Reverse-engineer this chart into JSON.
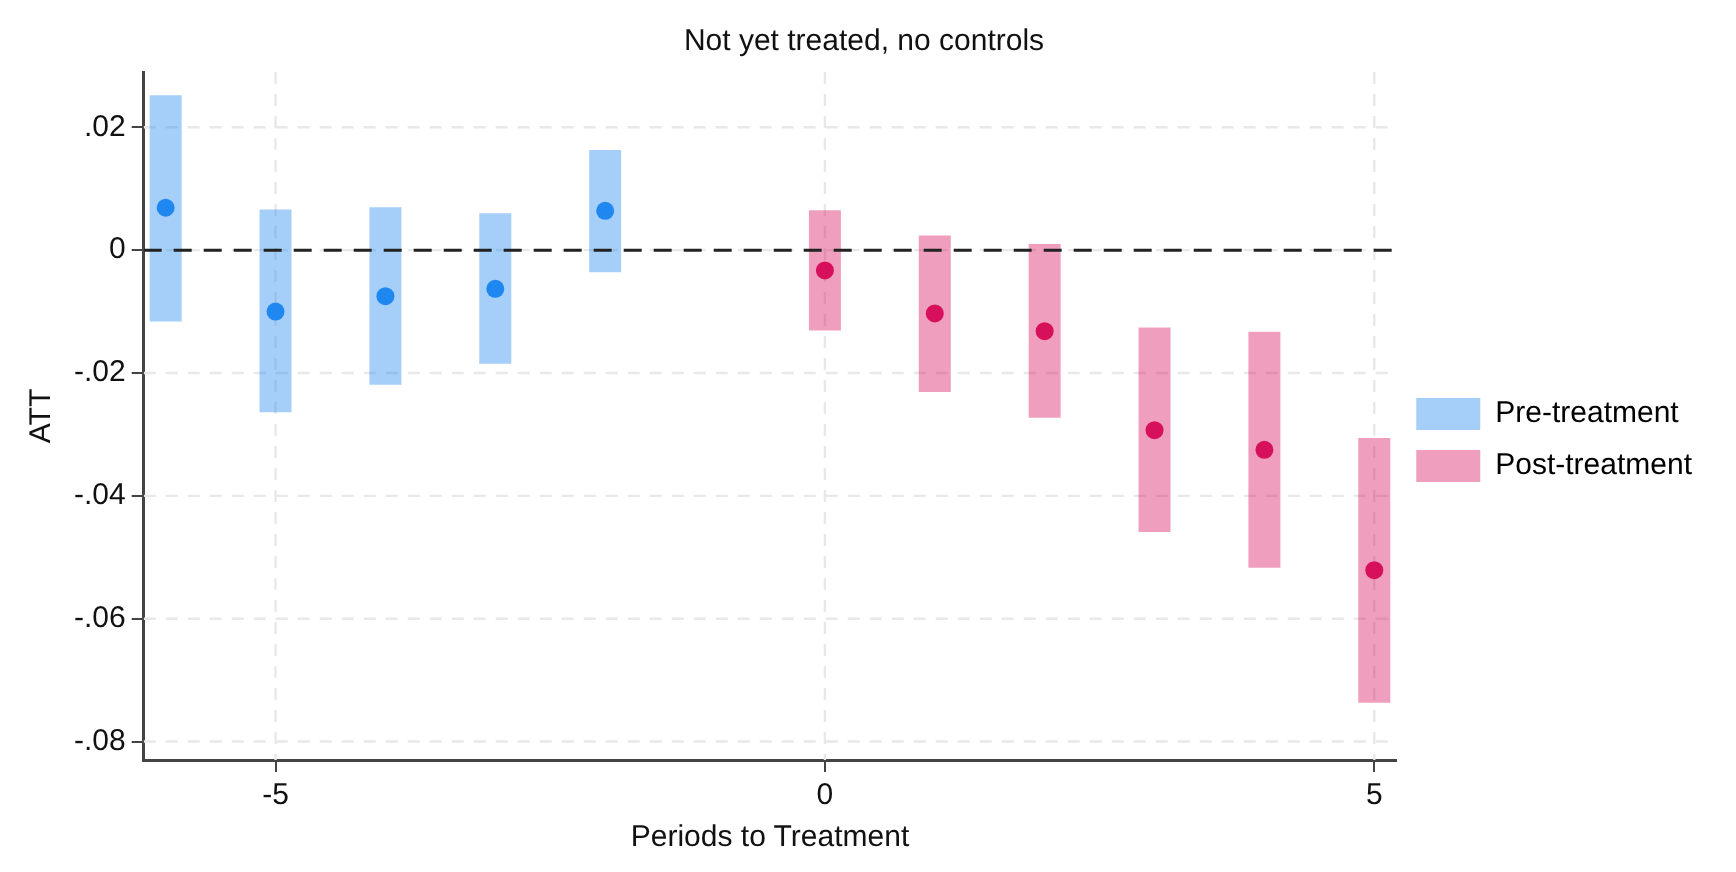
{
  "chart_data": {
    "type": "scatter",
    "title": "Not yet treated, no controls",
    "xlabel": "Periods to Treatment",
    "ylabel": "ATT",
    "series": [
      {
        "name": "Pre-treatment",
        "color": "#1e88f0",
        "x": [
          -6,
          -5,
          -4,
          -3,
          -2
        ],
        "values": [
          0.0069,
          -0.01,
          -0.0075,
          -0.0063,
          0.0064
        ],
        "errors": [
          [
            -0.0116,
            0.0252
          ],
          [
            -0.0264,
            0.0066
          ],
          [
            -0.0219,
            0.007
          ],
          [
            -0.0185,
            0.006
          ],
          [
            -0.0036,
            0.0163
          ]
        ]
      },
      {
        "name": "Post-treatment",
        "color": "#d6105a",
        "x": [
          0,
          1,
          2,
          3,
          4,
          5
        ],
        "values": [
          -0.0033,
          -0.0103,
          -0.0132,
          -0.0293,
          -0.0325,
          -0.0521
        ],
        "errors": [
          [
            -0.0131,
            0.0065
          ],
          [
            -0.0231,
            0.0024
          ],
          [
            -0.0273,
            0.001
          ],
          [
            -0.0459,
            -0.0126
          ],
          [
            -0.0517,
            -0.0133
          ],
          [
            -0.0737,
            -0.0306
          ]
        ]
      }
    ],
    "xlim": [
      -6.2,
      5.2
    ],
    "xticks": [
      -5,
      0,
      5
    ],
    "ylim": [
      -0.083,
      0.029
    ],
    "yticks": [
      {
        "value": 0.02,
        "label": ".02"
      },
      0,
      {
        "value": -0.02,
        "label": "-.02"
      },
      {
        "value": -0.04,
        "label": "-.04"
      },
      {
        "value": -0.06,
        "label": "-.06"
      },
      {
        "value": -0.08,
        "label": "-.08"
      }
    ],
    "ref_lines": [
      {
        "axis": "y",
        "value": 0,
        "label": null,
        "color": "#222222",
        "line_style": "dashed"
      }
    ],
    "grid": true,
    "legend": "right",
    "marker": "circle"
  }
}
